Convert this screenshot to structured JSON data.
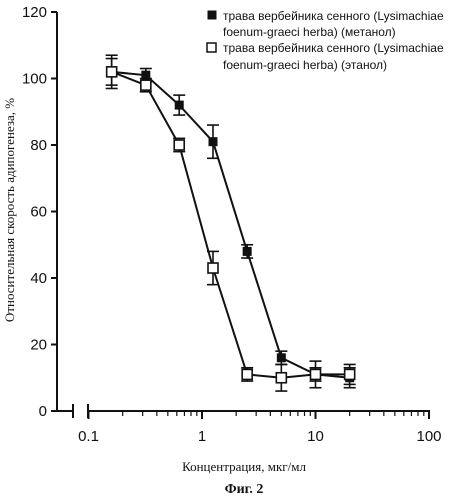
{
  "chart_data": {
    "type": "line",
    "xscale": "log",
    "x_ticks": [
      "0.1",
      "1",
      "10",
      "100"
    ],
    "y_ticks": [
      "0",
      "20",
      "40",
      "60",
      "80",
      "100",
      "120"
    ],
    "xlim": [
      0.05,
      100
    ],
    "ylim": [
      0,
      120
    ],
    "xlabel": "Концентрация, мкг/мл",
    "ylabel": "Относительная скорость адипогенеза, %",
    "caption": "Фиг. 2",
    "legend_position": "top-right",
    "grid": false,
    "series": [
      {
        "name_lines": [
          "трава вербейника сенного (Lysimachiae",
          "foenum-graeci herba) (метанол)"
        ],
        "marker": "filled-square",
        "x": [
          0.16,
          0.32,
          0.63,
          1.25,
          2.5,
          5,
          10,
          20
        ],
        "y": [
          102,
          101,
          92,
          81,
          48,
          16,
          11,
          10
        ],
        "err": [
          4,
          2,
          3,
          5,
          2,
          2,
          2,
          3
        ]
      },
      {
        "name_lines": [
          "трава вербейника сенного (Lysimachiae",
          "foenum-graeci herba) (этанол)"
        ],
        "marker": "open-square",
        "x": [
          0.16,
          0.32,
          0.63,
          1.25,
          2.5,
          5,
          10,
          20
        ],
        "y": [
          102,
          98,
          80,
          43,
          11,
          10,
          11,
          11
        ],
        "err": [
          5,
          2,
          2,
          5,
          2,
          4,
          4,
          3
        ]
      }
    ]
  }
}
